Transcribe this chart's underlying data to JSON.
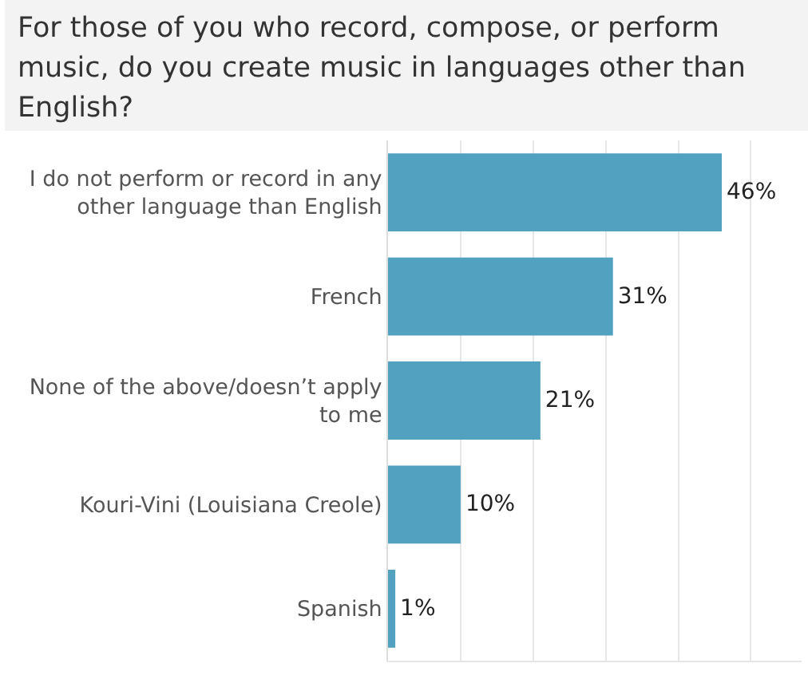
{
  "chart_data": {
    "type": "bar",
    "orientation": "horizontal",
    "title": "For those of you who record, compose, or perform music, do you create music in languages other than English?",
    "categories": [
      "I do not perform or record in any other language than English",
      "French",
      "None of the above/doesn’t apply to me",
      "Kouri-Vini (Louisiana Creole)",
      "Spanish"
    ],
    "values": [
      46,
      31,
      21,
      10,
      1
    ],
    "value_labels": [
      "46%",
      "31%",
      "21%",
      "10%",
      "1%"
    ],
    "color": "#52a1c0",
    "xlim": [
      0,
      57
    ],
    "xticks": [
      {
        "value": 0,
        "label": null
      },
      {
        "value": 10,
        "label": null
      },
      {
        "value": 20,
        "label": null
      },
      {
        "value": 30,
        "label": null
      },
      {
        "value": 40,
        "label": null
      },
      {
        "value": 50,
        "label": null
      }
    ],
    "grid": "x",
    "tick_labels": "y",
    "legend": false
  }
}
